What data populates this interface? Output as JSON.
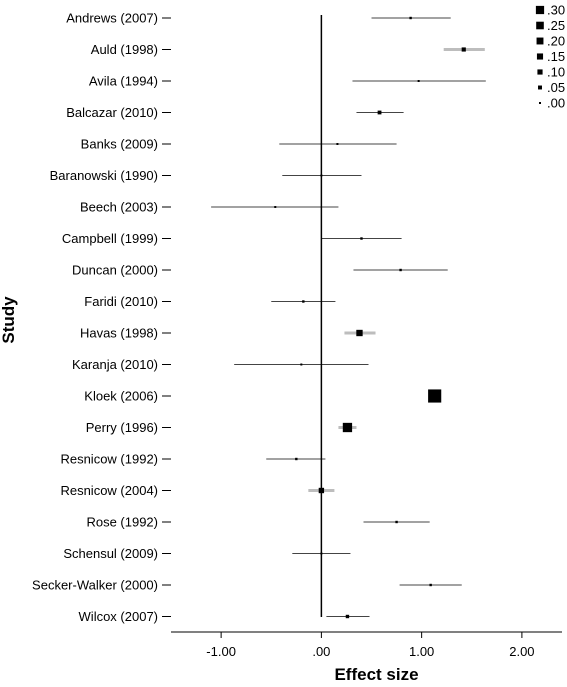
{
  "chart_data": {
    "type": "forest",
    "xlabel": "Effect size",
    "ylabel": "Study",
    "xlim": [
      -1.5,
      2.4
    ],
    "xticks": [
      -1.0,
      0.0,
      1.0,
      2.0
    ],
    "xtick_labels": [
      "-1.00",
      ".00",
      "1.00",
      "2.00"
    ],
    "reference_line": 0.0,
    "legend": {
      "title": "",
      "placement": "top-right",
      "entries": [
        {
          "label": ".30",
          "value": 0.3
        },
        {
          "label": ".25",
          "value": 0.25
        },
        {
          "label": ".20",
          "value": 0.2
        },
        {
          "label": ".15",
          "value": 0.15
        },
        {
          "label": ".10",
          "value": 0.1
        },
        {
          "label": ".05",
          "value": 0.05
        },
        {
          "label": ".00",
          "value": 0.0
        }
      ]
    },
    "studies": [
      {
        "name": "Andrews (2007)",
        "effect": 0.89,
        "ci_low": 0.5,
        "ci_high": 1.29,
        "weight": 0.01
      },
      {
        "name": "Auld (1998)",
        "effect": 1.42,
        "ci_low": 1.22,
        "ci_high": 1.63,
        "weight": 0.03
      },
      {
        "name": "Avila (1994)",
        "effect": 0.97,
        "ci_low": 0.31,
        "ci_high": 1.64,
        "weight": 0.005
      },
      {
        "name": "Balcazar (2010)",
        "effect": 0.58,
        "ci_low": 0.35,
        "ci_high": 0.82,
        "weight": 0.025
      },
      {
        "name": "Banks (2009)",
        "effect": 0.16,
        "ci_low": -0.42,
        "ci_high": 0.75,
        "weight": 0.005
      },
      {
        "name": "Baranowski (1990)",
        "effect": 0.0,
        "ci_low": -0.39,
        "ci_high": 0.4,
        "weight": 0.005
      },
      {
        "name": "Beech (2003)",
        "effect": -0.46,
        "ci_low": -1.1,
        "ci_high": 0.17,
        "weight": 0.005
      },
      {
        "name": "Campbell (1999)",
        "effect": 0.4,
        "ci_low": 0.0,
        "ci_high": 0.8,
        "weight": 0.01
      },
      {
        "name": "Duncan (2000)",
        "effect": 0.79,
        "ci_low": 0.32,
        "ci_high": 1.26,
        "weight": 0.01
      },
      {
        "name": "Faridi (2010)",
        "effect": -0.18,
        "ci_low": -0.5,
        "ci_high": 0.14,
        "weight": 0.01
      },
      {
        "name": "Havas (1998)",
        "effect": 0.38,
        "ci_low": 0.23,
        "ci_high": 0.54,
        "weight": 0.07
      },
      {
        "name": "Karanja (2010)",
        "effect": -0.2,
        "ci_low": -0.87,
        "ci_high": 0.47,
        "weight": 0.005
      },
      {
        "name": "Kloek (2006)",
        "effect": 1.13,
        "ci_low": 1.07,
        "ci_high": 1.19,
        "weight": 0.3
      },
      {
        "name": "Perry (1996)",
        "effect": 0.26,
        "ci_low": 0.17,
        "ci_high": 0.35,
        "weight": 0.15
      },
      {
        "name": "Resnicow (1992)",
        "effect": -0.25,
        "ci_low": -0.55,
        "ci_high": 0.04,
        "weight": 0.01
      },
      {
        "name": "Resnicow (2004)",
        "effect": 0.0,
        "ci_low": -0.13,
        "ci_high": 0.13,
        "weight": 0.05
      },
      {
        "name": "Rose (1992)",
        "effect": 0.75,
        "ci_low": 0.42,
        "ci_high": 1.08,
        "weight": 0.01
      },
      {
        "name": "Schensul (2009)",
        "effect": 0.0,
        "ci_low": -0.29,
        "ci_high": 0.29,
        "weight": 0.005
      },
      {
        "name": "Secker-Walker (2000)",
        "effect": 1.09,
        "ci_low": 0.78,
        "ci_high": 1.4,
        "weight": 0.01
      },
      {
        "name": "Wilcox (2007)",
        "effect": 0.26,
        "ci_low": 0.05,
        "ci_high": 0.48,
        "weight": 0.02
      }
    ]
  }
}
